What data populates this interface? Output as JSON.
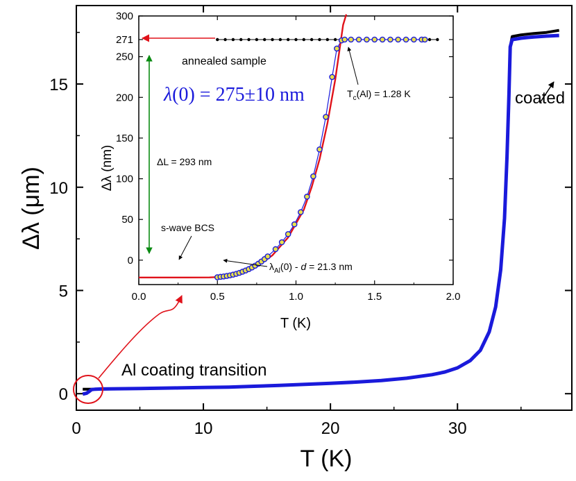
{
  "chart_data": [
    {
      "type": "line",
      "xlabel": "T (K)",
      "ylabel": "Δλ (μm)",
      "xlim": [
        0,
        39
      ],
      "ylim": [
        -0.8,
        18.8
      ],
      "xticks": [
        0,
        10,
        20,
        30
      ],
      "yticks": [
        0,
        5,
        10,
        15
      ],
      "grid": false,
      "series": [
        {
          "color": "#000000",
          "points": [
            [
              0.5,
              0.22
            ],
            [
              2,
              0.22
            ],
            [
              5,
              0.25
            ],
            [
              8,
              0.28
            ],
            [
              10,
              0.3
            ],
            [
              12,
              0.32
            ],
            [
              14,
              0.36
            ],
            [
              16,
              0.4
            ],
            [
              18,
              0.45
            ],
            [
              20,
              0.5
            ],
            [
              22,
              0.56
            ],
            [
              24,
              0.64
            ],
            [
              26,
              0.75
            ],
            [
              28,
              0.92
            ],
            [
              29,
              1.05
            ],
            [
              30,
              1.25
            ],
            [
              31,
              1.6
            ],
            [
              31.8,
              2.1
            ],
            [
              32.5,
              3.0
            ],
            [
              33,
              4.2
            ],
            [
              33.4,
              6.0
            ],
            [
              33.7,
              8.5
            ],
            [
              33.9,
              11.5
            ],
            [
              34.05,
              14.5
            ],
            [
              34.15,
              16.8
            ],
            [
              34.3,
              17.3
            ],
            [
              35,
              17.38
            ],
            [
              36,
              17.45
            ],
            [
              37,
              17.5
            ],
            [
              38,
              17.6
            ]
          ]
        },
        {
          "color": "#1a1adb",
          "points": [
            [
              0.5,
              -0.02
            ],
            [
              0.8,
              0.02
            ],
            [
              1.0,
              0.1
            ],
            [
              1.2,
              0.2
            ],
            [
              1.5,
              0.22
            ],
            [
              2,
              0.23
            ],
            [
              5,
              0.25
            ],
            [
              8,
              0.28
            ],
            [
              10,
              0.3
            ],
            [
              12,
              0.32
            ],
            [
              14,
              0.36
            ],
            [
              16,
              0.4
            ],
            [
              18,
              0.45
            ],
            [
              20,
              0.5
            ],
            [
              22,
              0.56
            ],
            [
              24,
              0.64
            ],
            [
              26,
              0.75
            ],
            [
              28,
              0.92
            ],
            [
              29,
              1.05
            ],
            [
              30,
              1.25
            ],
            [
              31,
              1.6
            ],
            [
              31.8,
              2.1
            ],
            [
              32.5,
              3.0
            ],
            [
              33,
              4.2
            ],
            [
              33.4,
              6.0
            ],
            [
              33.7,
              8.5
            ],
            [
              33.9,
              11.5
            ],
            [
              34.05,
              14.5
            ],
            [
              34.15,
              16.8
            ],
            [
              34.3,
              17.15
            ],
            [
              35,
              17.22
            ],
            [
              36,
              17.28
            ],
            [
              37,
              17.32
            ],
            [
              38,
              17.35
            ]
          ]
        }
      ],
      "annotations": [
        "Al coating transition",
        "coated"
      ]
    },
    {
      "type": "scatter",
      "xlabel": "T (K)",
      "ylabel": "Δλ (nm)",
      "xlim": [
        0,
        2.0
      ],
      "ylim": [
        -30,
        300
      ],
      "xticks": [
        "0.0",
        "0.5",
        "1.0",
        "1.5",
        "2.0"
      ],
      "yticks": [
        "0",
        "50",
        "100",
        "150",
        "200",
        "250",
        "271",
        "300"
      ],
      "grid": false,
      "series": [
        {
          "color": "#000000",
          "marker": "small dot",
          "points": [
            [
              0.5,
              271
            ],
            [
              0.55,
              271
            ],
            [
              0.6,
              271
            ],
            [
              0.65,
              271
            ],
            [
              0.7,
              271
            ],
            [
              0.75,
              271
            ],
            [
              0.8,
              271
            ],
            [
              0.85,
              271
            ],
            [
              0.9,
              271
            ],
            [
              0.95,
              271
            ],
            [
              1.0,
              271
            ],
            [
              1.05,
              271
            ],
            [
              1.1,
              271
            ],
            [
              1.15,
              271
            ],
            [
              1.2,
              271
            ],
            [
              1.25,
              271
            ],
            [
              1.3,
              271
            ],
            [
              1.35,
              271
            ],
            [
              1.4,
              271
            ],
            [
              1.45,
              271
            ],
            [
              1.5,
              271
            ],
            [
              1.55,
              271
            ],
            [
              1.6,
              271
            ],
            [
              1.65,
              271
            ],
            [
              1.7,
              271
            ],
            [
              1.75,
              271
            ],
            [
              1.8,
              271
            ],
            [
              1.85,
              271
            ],
            [
              1.9,
              271
            ]
          ]
        },
        {
          "color": "#1a1adb",
          "marker_fill": "#e8e04a",
          "marker": "circle",
          "points": [
            [
              0.5,
              -21
            ],
            [
              0.52,
              -20.5
            ],
            [
              0.54,
              -20
            ],
            [
              0.56,
              -19.4
            ],
            [
              0.58,
              -18.7
            ],
            [
              0.6,
              -17.8
            ],
            [
              0.62,
              -16.8
            ],
            [
              0.64,
              -15.6
            ],
            [
              0.66,
              -14.2
            ],
            [
              0.68,
              -12.7
            ],
            [
              0.7,
              -11
            ],
            [
              0.72,
              -9
            ],
            [
              0.74,
              -6.8
            ],
            [
              0.76,
              -4.4
            ],
            [
              0.78,
              -1.7
            ],
            [
              0.8,
              1.3
            ],
            [
              0.82,
              4.6
            ],
            [
              0.87,
              13.5
            ],
            [
              0.91,
              22
            ],
            [
              0.95,
              32
            ],
            [
              0.99,
              44
            ],
            [
              1.03,
              59
            ],
            [
              1.07,
              78
            ],
            [
              1.11,
              103
            ],
            [
              1.15,
              136
            ],
            [
              1.19,
              176
            ],
            [
              1.23,
              225
            ],
            [
              1.26,
              260
            ],
            [
              1.29,
              270
            ],
            [
              1.31,
              271
            ],
            [
              1.35,
              271
            ],
            [
              1.4,
              271
            ],
            [
              1.45,
              271
            ],
            [
              1.5,
              271
            ],
            [
              1.55,
              271
            ],
            [
              1.6,
              271
            ],
            [
              1.65,
              271
            ],
            [
              1.7,
              271
            ],
            [
              1.75,
              271
            ],
            [
              1.8,
              271
            ],
            [
              1.82,
              271
            ]
          ]
        },
        {
          "name": "s-wave BCS",
          "color": "#e0121a",
          "points": [
            [
              0,
              -21.3
            ],
            [
              0.3,
              -21.3
            ],
            [
              0.45,
              -21.2
            ],
            [
              0.55,
              -20.4
            ],
            [
              0.65,
              -16.5
            ],
            [
              0.75,
              -8
            ],
            [
              0.85,
              6
            ],
            [
              0.95,
              28
            ],
            [
              1.05,
              62
            ],
            [
              1.1,
              90
            ],
            [
              1.15,
              124
            ],
            [
              1.2,
              168
            ],
            [
              1.25,
              222
            ],
            [
              1.3,
              289
            ],
            [
              1.32,
              302
            ]
          ]
        }
      ],
      "annotations": [
        "annealed sample",
        "T",
        "c",
        "(Al) = 1.28 K",
        "ΔL = 293 nm",
        "s-wave BCS",
        "λ",
        "Al",
        "(0) - ",
        "d",
        " = 21.3 nm"
      ],
      "formula": {
        "prefix": "λ",
        "rest": "(0) = 275±10 nm"
      }
    }
  ]
}
